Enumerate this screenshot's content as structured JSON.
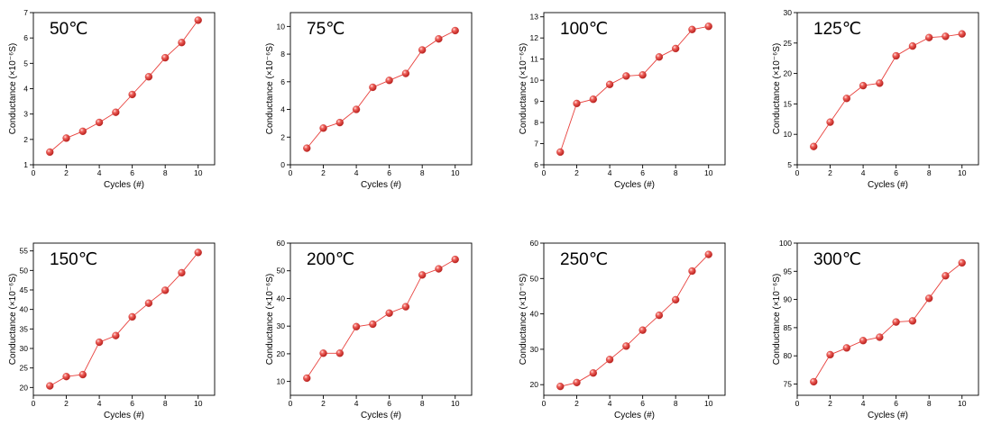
{
  "figure": {
    "panels_count": 8
  },
  "chart_data": [
    {
      "type": "line",
      "title": "50℃",
      "xlabel": "Cycles (#)",
      "ylabel": "Conductance (×10⁻⁶S)",
      "x": [
        1,
        2,
        3,
        4,
        5,
        6,
        7,
        8,
        9,
        10
      ],
      "series": [
        {
          "values": [
            1.5,
            2.05,
            2.32,
            2.67,
            3.07,
            3.77,
            4.47,
            5.22,
            5.82,
            6.7
          ]
        }
      ],
      "xlim": [
        0,
        11
      ],
      "xticks": [
        0,
        2,
        4,
        6,
        8,
        10
      ],
      "ylim": [
        1,
        7
      ],
      "yticks": [
        1,
        2,
        3,
        4,
        5,
        6,
        7
      ],
      "color": "#e8413d",
      "grid": false
    },
    {
      "type": "line",
      "title": "75℃",
      "xlabel": "Cycles (#)",
      "ylabel": "Conductance (×10⁻⁶S)",
      "x": [
        1,
        2,
        3,
        4,
        5,
        6,
        7,
        8,
        9,
        10
      ],
      "series": [
        {
          "values": [
            1.2,
            2.65,
            3.05,
            4.0,
            5.6,
            6.1,
            6.6,
            8.3,
            9.1,
            9.7
          ]
        }
      ],
      "xlim": [
        0,
        11
      ],
      "xticks": [
        0,
        2,
        4,
        6,
        8,
        10
      ],
      "ylim": [
        0,
        11
      ],
      "yticks": [
        0,
        2,
        4,
        6,
        8,
        10
      ],
      "color": "#e8413d",
      "grid": false
    },
    {
      "type": "line",
      "title": "100℃",
      "xlabel": "Cycles (#)",
      "ylabel": "Conductance (×10⁻⁶S)",
      "x": [
        1,
        2,
        3,
        4,
        5,
        6,
        7,
        8,
        9,
        10
      ],
      "series": [
        {
          "values": [
            6.6,
            8.9,
            9.1,
            9.8,
            10.2,
            10.25,
            11.1,
            11.5,
            12.4,
            12.55
          ]
        }
      ],
      "xlim": [
        0,
        11
      ],
      "xticks": [
        0,
        2,
        4,
        6,
        8,
        10
      ],
      "ylim": [
        6,
        13.2
      ],
      "yticks": [
        6,
        7,
        8,
        9,
        10,
        11,
        12,
        13
      ],
      "color": "#e8413d",
      "grid": false
    },
    {
      "type": "line",
      "title": "125℃",
      "xlabel": "Cycles (#)",
      "ylabel": "Conductance (×10⁻⁶S)",
      "x": [
        1,
        2,
        3,
        4,
        5,
        6,
        7,
        8,
        9,
        10
      ],
      "series": [
        {
          "values": [
            8.0,
            12.0,
            15.9,
            18.0,
            18.4,
            22.9,
            24.5,
            25.9,
            26.1,
            26.5
          ]
        }
      ],
      "xlim": [
        0,
        11
      ],
      "xticks": [
        0,
        2,
        4,
        6,
        8,
        10
      ],
      "ylim": [
        5,
        30
      ],
      "yticks": [
        5,
        10,
        15,
        20,
        25,
        30
      ],
      "color": "#e8413d",
      "grid": false
    },
    {
      "type": "line",
      "title": "150℃",
      "xlabel": "Cycles (#)",
      "ylabel": "Conductance (×10⁻⁶S)",
      "x": [
        1,
        2,
        3,
        4,
        5,
        6,
        7,
        8,
        9,
        10
      ],
      "series": [
        {
          "values": [
            20.4,
            22.8,
            23.3,
            31.6,
            33.3,
            38.1,
            41.6,
            44.9,
            49.4,
            54.6
          ]
        }
      ],
      "xlim": [
        0,
        11
      ],
      "xticks": [
        0,
        2,
        4,
        6,
        8,
        10
      ],
      "ylim": [
        18,
        57
      ],
      "yticks": [
        20,
        25,
        30,
        35,
        40,
        45,
        50,
        55
      ],
      "color": "#e8413d",
      "grid": false
    },
    {
      "type": "line",
      "title": "200℃",
      "xlabel": "Cycles (#)",
      "ylabel": "Conductance (×10⁻⁶S)",
      "x": [
        1,
        2,
        3,
        4,
        5,
        6,
        7,
        8,
        9,
        10
      ],
      "series": [
        {
          "values": [
            11.2,
            20.2,
            20.2,
            29.8,
            30.7,
            34.7,
            37.0,
            48.5,
            50.7,
            54.1
          ]
        }
      ],
      "xlim": [
        0,
        11
      ],
      "xticks": [
        0,
        2,
        4,
        6,
        8,
        10
      ],
      "ylim": [
        5,
        60
      ],
      "yticks": [
        10,
        20,
        30,
        40,
        50,
        60
      ],
      "color": "#e8413d",
      "grid": false
    },
    {
      "type": "line",
      "title": "250℃",
      "xlabel": "Cycles (#)",
      "ylabel": "Conductance (×10⁻⁶S)",
      "x": [
        1,
        2,
        3,
        4,
        5,
        6,
        7,
        8,
        9,
        10
      ],
      "series": [
        {
          "values": [
            19.5,
            20.6,
            23.3,
            27.1,
            30.9,
            35.4,
            39.6,
            44.0,
            52.1,
            56.8
          ]
        }
      ],
      "xlim": [
        0,
        11
      ],
      "xticks": [
        0,
        2,
        4,
        6,
        8,
        10
      ],
      "ylim": [
        17,
        60
      ],
      "yticks": [
        20,
        30,
        40,
        50,
        60
      ],
      "color": "#e8413d",
      "grid": false
    },
    {
      "type": "line",
      "title": "300℃",
      "xlabel": "Cycles (#)",
      "ylabel": "Conductance (×10⁻⁶S)",
      "x": [
        1,
        2,
        3,
        4,
        5,
        6,
        7,
        8,
        9,
        10
      ],
      "series": [
        {
          "values": [
            75.4,
            80.2,
            81.4,
            82.7,
            83.3,
            86.0,
            86.2,
            90.2,
            94.2,
            96.5
          ]
        }
      ],
      "xlim": [
        0,
        11
      ],
      "xticks": [
        0,
        2,
        4,
        6,
        8,
        10
      ],
      "ylim": [
        73,
        100
      ],
      "yticks": [
        75,
        80,
        85,
        90,
        95,
        100
      ],
      "color": "#e8413d",
      "grid": false
    }
  ]
}
